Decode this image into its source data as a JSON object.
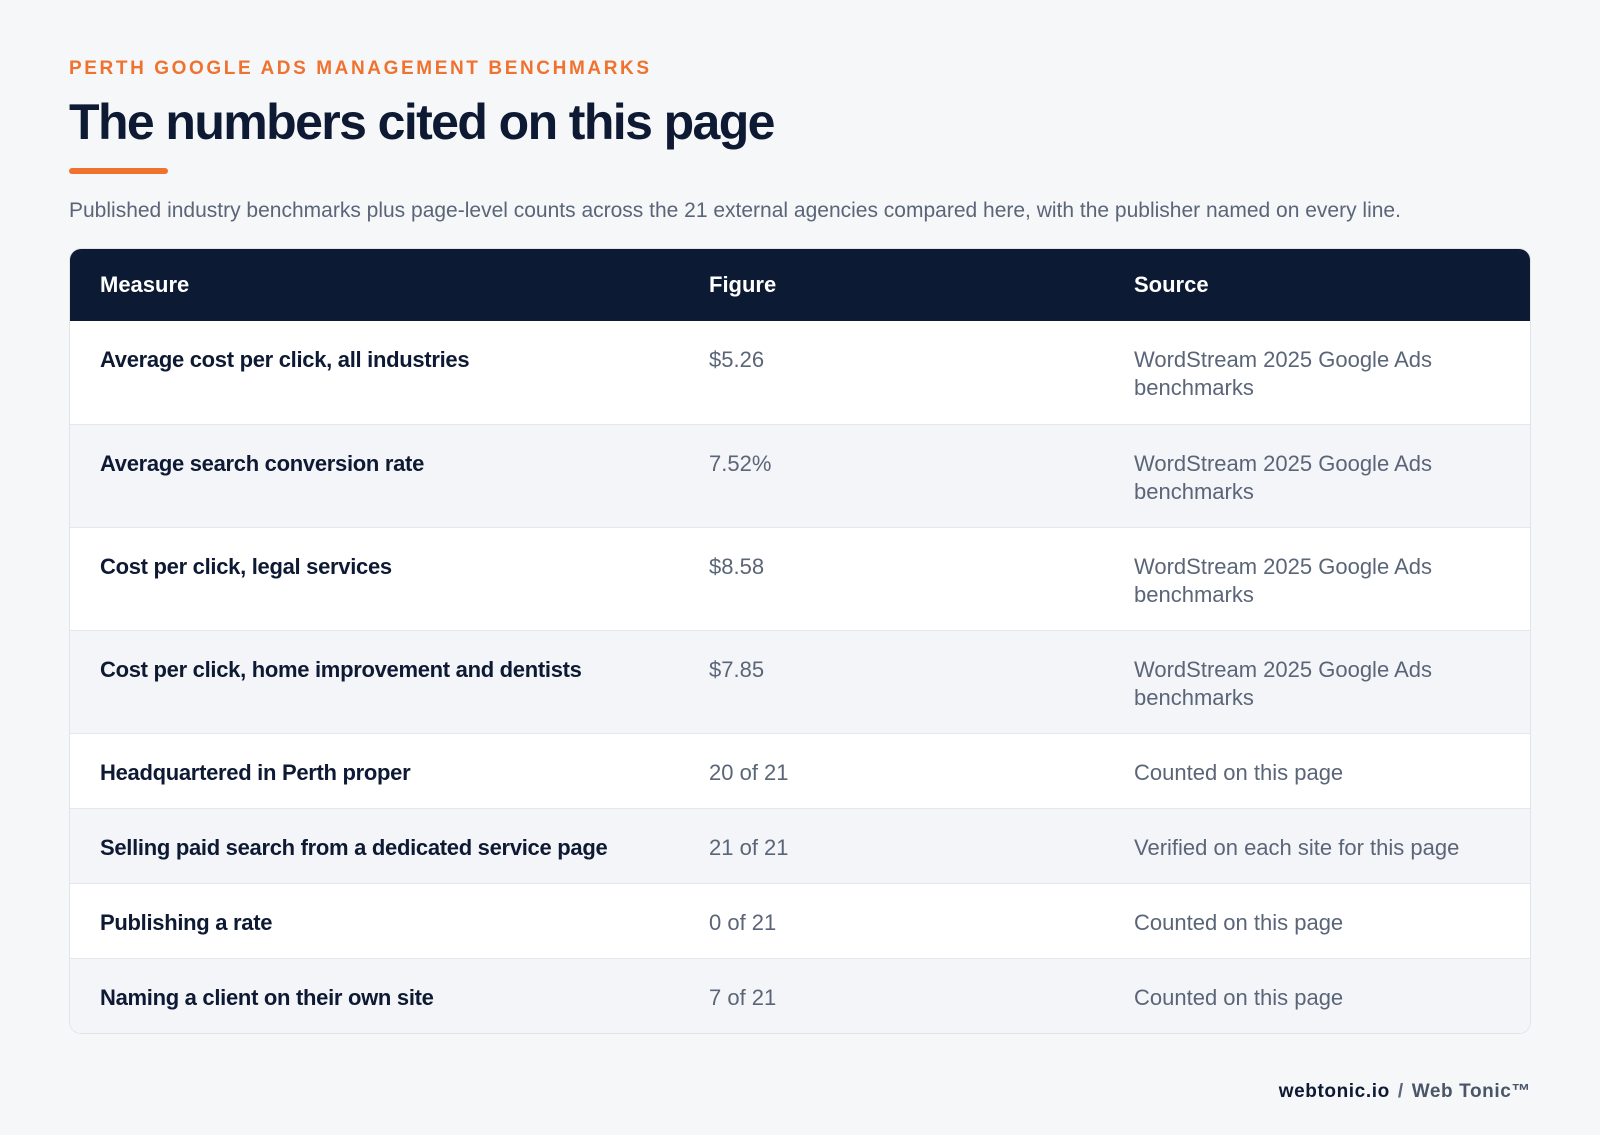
{
  "header": {
    "eyebrow": "PERTH GOOGLE ADS MANAGEMENT BENCHMARKS",
    "title": "The numbers cited on this page",
    "subtitle": "Published industry benchmarks plus page-level counts across the 21 external agencies compared here, with the publisher named on every line."
  },
  "table": {
    "columns": [
      "Measure",
      "Figure",
      "Source"
    ],
    "rows": [
      {
        "measure": "Average cost per click, all industries",
        "figure": "$5.26",
        "source": "WordStream 2025 Google Ads benchmarks"
      },
      {
        "measure": "Average search conversion rate",
        "figure": "7.52%",
        "source": "WordStream 2025 Google Ads benchmarks"
      },
      {
        "measure": "Cost per click, legal services",
        "figure": "$8.58",
        "source": "WordStream 2025 Google Ads benchmarks"
      },
      {
        "measure": "Cost per click, home improvement and dentists",
        "figure": "$7.85",
        "source": "WordStream 2025 Google Ads benchmarks"
      },
      {
        "measure": "Headquartered in Perth proper",
        "figure": "20 of 21",
        "source": "Counted on this page"
      },
      {
        "measure": "Selling paid search from a dedicated service page",
        "figure": "21 of 21",
        "source": "Verified on each site for this page"
      },
      {
        "measure": "Publishing a rate",
        "figure": "0 of 21",
        "source": "Counted on this page"
      },
      {
        "measure": "Naming a client on their own site",
        "figure": "7 of 21",
        "source": "Counted on this page"
      }
    ]
  },
  "footer": {
    "domain": "webtonic.io",
    "separator": "/",
    "brand": "Web Tonic™"
  },
  "colors": {
    "accent": "#f0722f",
    "navy": "#0c1a33",
    "muted_text": "#5a6578",
    "background": "#f6f7f9"
  }
}
